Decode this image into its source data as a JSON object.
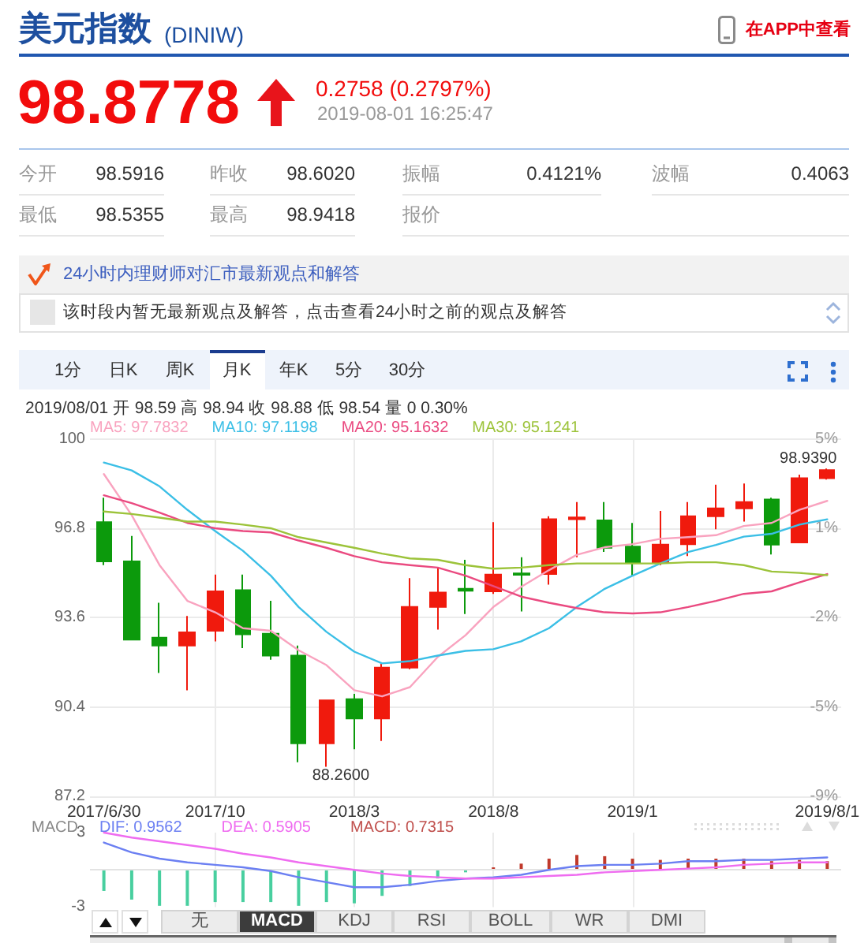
{
  "chart_data": [
    {
      "type": "other",
      "title": "美元指数",
      "subtitle": "(DINIW)",
      "annotations": [
        "在APP中查看",
        "98.8778",
        "0.2758 (0.2797%)",
        "2019-08-01 16:25:47",
        "今开",
        "98.5916",
        "昨收",
        "98.6020",
        "振幅",
        "0.4121%",
        "波幅",
        "0.4063",
        "最低",
        "98.5355",
        "最高",
        "98.9418",
        "报价",
        "24小时内理财师对汇市最新观点和解答",
        "该时段内暂无最新观点及解答，点击查看24小时之前的观点及解答",
        "1分",
        "日K",
        "周K",
        "月K",
        "年K",
        "5分",
        "30分"
      ]
    },
    {
      "type": "candlestick",
      "title": "2019/08/01 开 98.59 高 98.94 收 98.88 低 98.54 量 0 0.30%",
      "categories": [
        "2017/6/30",
        null,
        null,
        null,
        "2017/10",
        null,
        null,
        null,
        null,
        "2018/3",
        null,
        null,
        null,
        null,
        "2018/8",
        null,
        null,
        null,
        null,
        "2019/1",
        null,
        null,
        null,
        null,
        null,
        null,
        "2019/8/1"
      ],
      "ohlc": [
        [
          97.02,
          97.89,
          95.48,
          95.61
        ],
        [
          95.61,
          96.52,
          92.78,
          92.81
        ],
        [
          92.88,
          94.13,
          91.62,
          92.6
        ],
        [
          92.6,
          93.66,
          91.0,
          93.07
        ],
        [
          93.13,
          95.14,
          92.75,
          94.54
        ],
        [
          94.58,
          95.14,
          92.51,
          93.0
        ],
        [
          93.02,
          94.2,
          92.09,
          92.24
        ],
        [
          92.24,
          92.6,
          88.42,
          89.1
        ],
        [
          89.1,
          90.64,
          88.26,
          90.64
        ],
        [
          90.68,
          90.87,
          88.89,
          89.99
        ],
        [
          89.99,
          91.96,
          89.18,
          91.81
        ],
        [
          91.81,
          95.01,
          91.75,
          93.98
        ],
        [
          93.98,
          95.39,
          93.17,
          94.5
        ],
        [
          94.63,
          95.67,
          93.73,
          94.56
        ],
        [
          94.54,
          97.02,
          94.45,
          95.14
        ],
        [
          95.18,
          95.76,
          93.82,
          95.13
        ],
        [
          95.16,
          97.23,
          94.78,
          97.12
        ],
        [
          97.12,
          97.74,
          95.76,
          97.19
        ],
        [
          97.08,
          97.74,
          95.95,
          96.1
        ],
        [
          96.14,
          96.99,
          95.1,
          95.58
        ],
        [
          95.58,
          97.42,
          95.48,
          96.21
        ],
        [
          96.23,
          97.74,
          95.8,
          97.23
        ],
        [
          97.23,
          98.36,
          96.76,
          97.51
        ],
        [
          97.51,
          98.4,
          97.04,
          97.74
        ],
        [
          97.83,
          97.89,
          95.86,
          96.21
        ],
        [
          96.29,
          98.72,
          96.29,
          98.59
        ],
        [
          98.59,
          98.94,
          98.54,
          98.88
        ]
      ],
      "colors": [
        "#0c9a0c",
        "#0c9a0c",
        "#0c9a0c",
        "#f01a0d",
        "#f01a0d",
        "#0c9a0c",
        "#0c9a0c",
        "#0c9a0c",
        "#f01a0d",
        "#0c9a0c",
        "#f01a0d",
        "#f01a0d",
        "#f01a0d",
        "#0c9a0c",
        "#f01a0d",
        "#0c9a0c",
        "#f01a0d",
        "#f01a0d",
        "#0c9a0c",
        "#0c9a0c",
        "#f01a0d",
        "#f01a0d",
        "#f01a0d",
        "#f01a0d",
        "#0c9a0c",
        "#f01a0d",
        "#f01a0d"
      ],
      "series": [
        {
          "type": "line",
          "name": "MA5: 97.7832",
          "color": "#f9a3bf",
          "values": [
            98.74,
            97.27,
            95.48,
            94.2,
            93.79,
            93.22,
            93.13,
            92.43,
            91.9,
            91.0,
            90.78,
            91.11,
            92.19,
            92.97,
            93.98,
            94.7,
            95.3,
            95.85,
            96.12,
            96.23,
            96.42,
            96.48,
            96.55,
            96.88,
            96.99,
            97.46,
            97.78
          ]
        },
        {
          "type": "line",
          "name": "MA10: 97.1198",
          "color": "#3bbfe6",
          "values": [
            99.15,
            98.87,
            98.3,
            97.46,
            96.7,
            95.99,
            95.1,
            93.98,
            93.09,
            92.38,
            91.96,
            92.04,
            92.24,
            92.41,
            92.47,
            92.75,
            93.22,
            93.98,
            94.63,
            95.1,
            95.54,
            95.95,
            96.2,
            96.5,
            96.6,
            96.93,
            97.12
          ]
        },
        {
          "type": "line",
          "name": "MA20: 95.1632",
          "color": "#ea4a80",
          "values": [
            97.98,
            97.7,
            97.36,
            96.99,
            96.8,
            96.7,
            96.65,
            96.36,
            96.1,
            95.8,
            95.58,
            95.48,
            95.39,
            95.1,
            94.73,
            94.35,
            94.13,
            93.94,
            93.79,
            93.75,
            93.79,
            93.98,
            94.2,
            94.45,
            94.54,
            94.86,
            95.16
          ]
        },
        {
          "type": "line",
          "name": "MA30: 95.1241",
          "color": "#9cc33a",
          "values": [
            97.4,
            97.31,
            97.18,
            97.04,
            97.04,
            96.93,
            96.8,
            96.48,
            96.29,
            96.1,
            95.89,
            95.72,
            95.67,
            95.48,
            95.35,
            95.39,
            95.48,
            95.54,
            95.54,
            95.54,
            95.54,
            95.58,
            95.58,
            95.48,
            95.25,
            95.2,
            95.12
          ]
        }
      ],
      "ylim": [
        87.2,
        100
      ],
      "yticks": [
        87.2,
        90.4,
        93.6,
        96.8,
        100
      ],
      "y2lim": [
        -8.7,
        4.7
      ],
      "y2ticks": [
        {
          "value": -8.7,
          "label": "-9%"
        },
        {
          "value": -5.35,
          "label": "-5%"
        },
        {
          "value": -2,
          "label": "-2%"
        },
        {
          "value": 1.35,
          "label": "1%"
        },
        {
          "value": 4.7,
          "label": "5%"
        }
      ],
      "annotations": [
        {
          "text": "98.9390",
          "x": "2019/8/1",
          "y": 98.94
        },
        "88.2600"
      ],
      "grid": true,
      "legend": "top"
    },
    {
      "type": "bar",
      "title": "MACD",
      "categories": [
        "2017/6/30",
        null,
        null,
        null,
        "2017/10",
        null,
        null,
        null,
        null,
        "2018/3",
        null,
        null,
        null,
        null,
        "2018/8",
        null,
        null,
        null,
        null,
        "2019/1",
        null,
        null,
        null,
        null,
        null,
        null,
        "2019/8/1"
      ],
      "series": [
        {
          "type": "line",
          "name": "DIF: 0.9562",
          "color": "#6b7ff2",
          "values": [
            2.2,
            1.4,
            0.9,
            0.6,
            0.4,
            0.2,
            -0.1,
            -0.6,
            -1.0,
            -1.4,
            -1.4,
            -1.2,
            -0.9,
            -0.7,
            -0.6,
            -0.4,
            0.0,
            0.3,
            0.4,
            0.4,
            0.5,
            0.7,
            0.7,
            0.8,
            0.8,
            0.9,
            1.0
          ]
        },
        {
          "type": "line",
          "name": "DEA: 0.5905",
          "color": "#ef6cf0",
          "values": [
            3.0,
            2.6,
            2.3,
            2.0,
            1.7,
            1.3,
            1.0,
            0.6,
            0.3,
            0.0,
            -0.3,
            -0.5,
            -0.6,
            -0.7,
            -0.7,
            -0.6,
            -0.5,
            -0.4,
            -0.2,
            -0.1,
            0.0,
            0.1,
            0.2,
            0.4,
            0.5,
            0.6,
            0.6
          ]
        },
        {
          "type": "bar",
          "name": "MACD: 0.7315",
          "color": "#c0504d",
          "colors": [
            "#48cf9f",
            "#48cf9f",
            "#48cf9f",
            "#48cf9f",
            "#48cf9f",
            "#48cf9f",
            "#48cf9f",
            "#48cf9f",
            "#48cf9f",
            "#48cf9f",
            "#48cf9f",
            "#48cf9f",
            "#48cf9f",
            "#48cf9f",
            "#c0392b",
            "#c0392b",
            "#c0392b",
            "#c0392b",
            "#c0392b",
            "#c0392b",
            "#c0392b",
            "#c0392b",
            "#c0392b",
            "#c0392b",
            "#c0392b",
            "#c0392b",
            "#c0392b"
          ],
          "values": [
            -1.7,
            -2.4,
            -2.9,
            -2.9,
            -2.6,
            -2.6,
            -2.6,
            -2.9,
            -2.6,
            -2.7,
            -2.1,
            -1.3,
            -0.7,
            -0.2,
            0.2,
            0.5,
            0.9,
            1.2,
            1.1,
            0.9,
            0.8,
            0.9,
            0.9,
            0.9,
            0.7,
            0.8,
            0.7
          ]
        }
      ],
      "ylim": [
        -3,
        3
      ],
      "yticks": [
        -3,
        3
      ],
      "grid": "x",
      "legend": "top",
      "tick_labels": "y",
      "ref_lines": [
        {
          "axis": "y",
          "value": 0,
          "color": "#e3e3e3"
        }
      ]
    },
    {
      "type": "other",
      "annotations": [
        "无",
        "MACD",
        "KDJ",
        "RSI",
        "BOLL",
        "WR",
        "DMI"
      ]
    }
  ]
}
